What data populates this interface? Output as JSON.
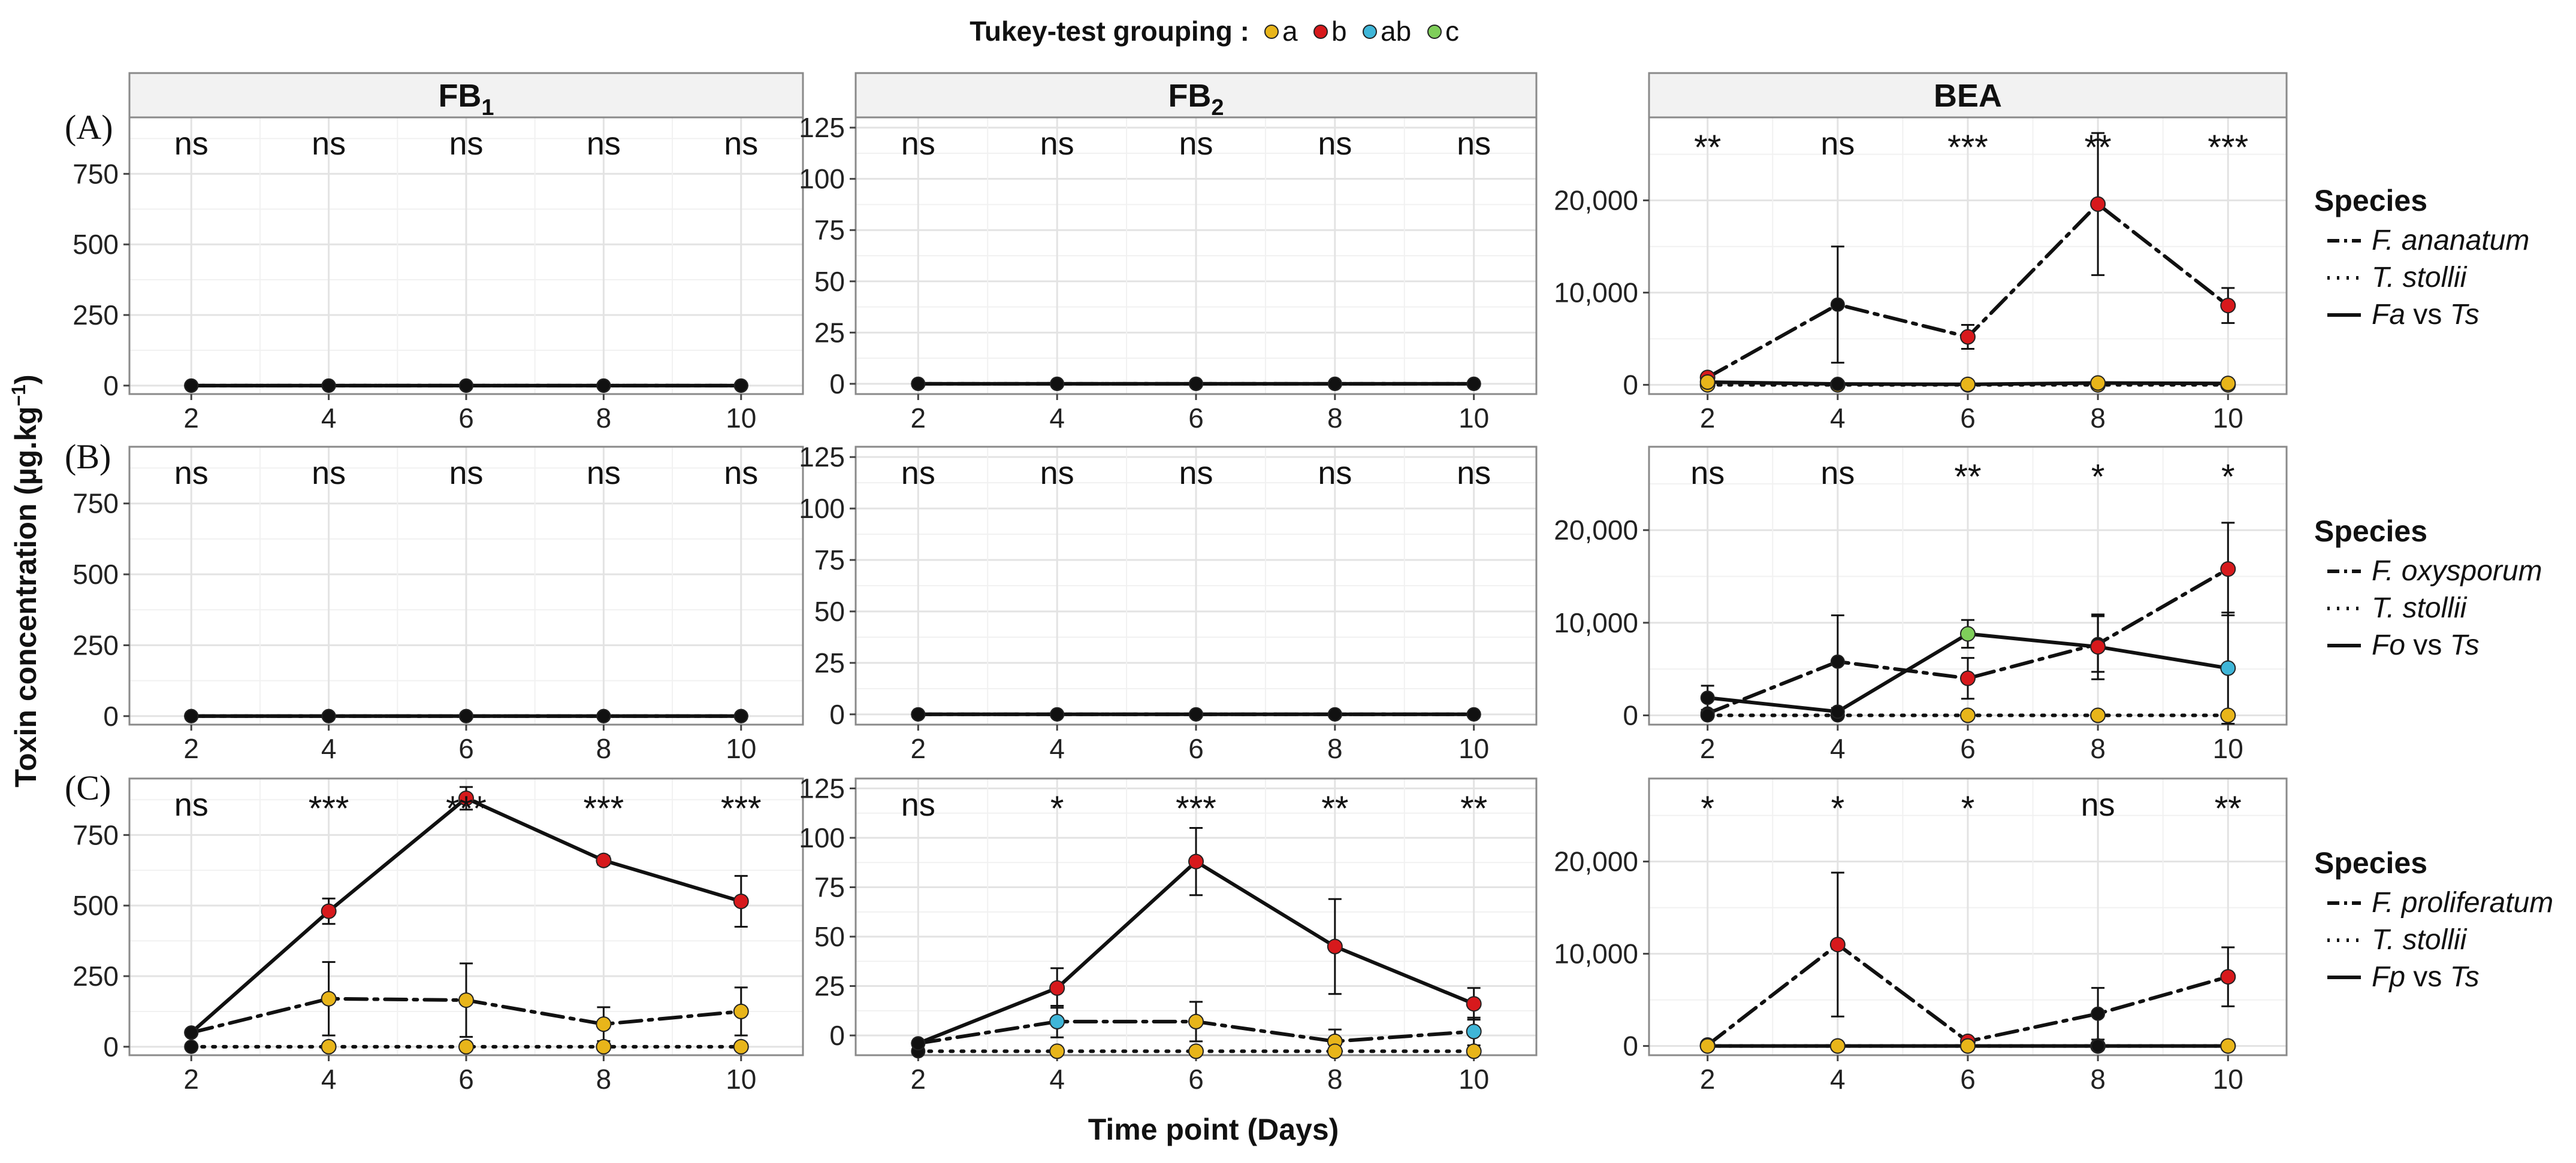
{
  "figure": {
    "ylabel_main": "Toxin concentration (µg.kg",
    "ylabel_sup": "−1",
    "ylabel_close": ")",
    "xlabel": "Time point (Days)",
    "tukey_title": "Tukey-test grouping :",
    "tukey_groups": [
      {
        "label": "a",
        "color": "#e8b51a"
      },
      {
        "label": "b",
        "color": "#d7191c"
      },
      {
        "label": "ab",
        "color": "#3fb6d8"
      },
      {
        "label": "c",
        "color": "#7fce5a"
      }
    ],
    "row_labels": [
      "(A)",
      "(B)",
      "(C)"
    ],
    "strip_titles": [
      {
        "main": "FB",
        "sub": "1"
      },
      {
        "main": "FB",
        "sub": "2"
      },
      {
        "main": "BEA",
        "sub": ""
      }
    ],
    "legends": [
      {
        "title": "Species",
        "entries": [
          {
            "italic": "F. ananatum",
            "rest": "",
            "linetype": "dotdash"
          },
          {
            "italic": "T. stollii",
            "rest": "",
            "linetype": "dotted"
          },
          {
            "italic": "Fa",
            "rest": " vs ",
            "italic2": "Ts",
            "linetype": "solid"
          }
        ]
      },
      {
        "title": "Species",
        "entries": [
          {
            "italic": "F. oxysporum",
            "rest": "",
            "linetype": "dotdash"
          },
          {
            "italic": "T. stollii",
            "rest": "",
            "linetype": "dotted"
          },
          {
            "italic": "Fo",
            "rest": " vs ",
            "italic2": "Ts",
            "linetype": "solid"
          }
        ]
      },
      {
        "title": "Species",
        "entries": [
          {
            "italic": "F. proliferatum",
            "rest": "",
            "linetype": "dotdash"
          },
          {
            "italic": "T. stollii",
            "rest": "",
            "linetype": "dotted"
          },
          {
            "italic": "Fp",
            "rest": " vs ",
            "italic2": "Ts",
            "linetype": "solid"
          }
        ]
      }
    ]
  },
  "chart_data": [
    {
      "id": "A-FB1",
      "type": "line",
      "row": 0,
      "col": 0,
      "ylim": [
        -30,
        950
      ],
      "yticks": [
        0,
        250,
        500,
        750
      ],
      "ytick_labels": [
        "0",
        "250",
        "500",
        "750"
      ],
      "x": [
        2,
        4,
        6,
        8,
        10
      ],
      "x_labels": [
        "2",
        "4",
        "6",
        "8",
        "10"
      ],
      "xlim": [
        1.1,
        10.9
      ],
      "signif": [
        "ns",
        "ns",
        "ns",
        "ns",
        "ns"
      ],
      "series": [
        {
          "name": "F. ananatum",
          "linetype": "dotdash",
          "values": [
            0,
            0,
            0,
            0,
            0
          ],
          "err": [
            0,
            0,
            0,
            0,
            0
          ],
          "groups": [
            "k",
            "k",
            "k",
            "k",
            "k"
          ]
        },
        {
          "name": "T. stollii",
          "linetype": "dotted",
          "values": [
            0,
            0,
            0,
            0,
            0
          ],
          "err": [
            0,
            0,
            0,
            0,
            0
          ],
          "groups": [
            "k",
            "k",
            "k",
            "k",
            "k"
          ]
        },
        {
          "name": "Fa vs Ts",
          "linetype": "solid",
          "values": [
            0,
            0,
            0,
            0,
            0
          ],
          "err": [
            0,
            0,
            0,
            0,
            0
          ],
          "groups": [
            "k",
            "k",
            "k",
            "k",
            "k"
          ]
        }
      ]
    },
    {
      "id": "A-FB2",
      "type": "line",
      "row": 0,
      "col": 1,
      "ylim": [
        -5,
        130
      ],
      "yticks": [
        0,
        25,
        50,
        75,
        100,
        125
      ],
      "ytick_labels": [
        "0",
        "25",
        "50",
        "75",
        "100",
        "125"
      ],
      "x": [
        2,
        4,
        6,
        8,
        10
      ],
      "x_labels": [
        "2",
        "4",
        "6",
        "8",
        "10"
      ],
      "xlim": [
        1.1,
        10.9
      ],
      "signif": [
        "ns",
        "ns",
        "ns",
        "ns",
        "ns"
      ],
      "series": [
        {
          "name": "F. ananatum",
          "linetype": "dotdash",
          "values": [
            0,
            0,
            0,
            0,
            0
          ],
          "err": [
            0,
            0,
            0,
            0,
            0
          ],
          "groups": [
            "k",
            "k",
            "k",
            "k",
            "k"
          ]
        },
        {
          "name": "T. stollii",
          "linetype": "dotted",
          "values": [
            0,
            0,
            0,
            0,
            0
          ],
          "err": [
            0,
            0,
            0,
            0,
            0
          ],
          "groups": [
            "k",
            "k",
            "k",
            "k",
            "k"
          ]
        },
        {
          "name": "Fa vs Ts",
          "linetype": "solid",
          "values": [
            0,
            0,
            0,
            0,
            0
          ],
          "err": [
            0,
            0,
            0,
            0,
            0
          ],
          "groups": [
            "k",
            "k",
            "k",
            "k",
            "k"
          ]
        }
      ]
    },
    {
      "id": "A-BEA",
      "type": "line",
      "row": 0,
      "col": 2,
      "ylim": [
        -1000,
        29000
      ],
      "yticks": [
        0,
        10000,
        20000
      ],
      "ytick_labels": [
        "0",
        "10,000",
        "20,000"
      ],
      "x": [
        2,
        4,
        6,
        8,
        10
      ],
      "x_labels": [
        "2",
        "4",
        "6",
        "8",
        "10"
      ],
      "xlim": [
        1.1,
        10.9
      ],
      "signif": [
        "**",
        "ns",
        "***",
        "**",
        "***"
      ],
      "series": [
        {
          "name": "F. ananatum",
          "linetype": "dotdash",
          "values": [
            800,
            8700,
            5200,
            19600,
            8600
          ],
          "err": [
            0,
            6300,
            1300,
            7700,
            1900
          ],
          "groups": [
            "b",
            "k",
            "b",
            "b",
            "b"
          ]
        },
        {
          "name": "T. stollii",
          "linetype": "dotted",
          "values": [
            0,
            0,
            0,
            0,
            0
          ],
          "err": [
            0,
            0,
            0,
            0,
            0
          ],
          "groups": [
            "a",
            "a",
            "a",
            "a",
            "a"
          ]
        },
        {
          "name": "Fa vs Ts",
          "linetype": "solid",
          "values": [
            300,
            100,
            50,
            200,
            150
          ],
          "err": [
            0,
            0,
            0,
            0,
            0
          ],
          "groups": [
            "a",
            "k",
            "a",
            "a",
            "a"
          ]
        }
      ]
    },
    {
      "id": "B-FB1",
      "type": "line",
      "row": 1,
      "col": 0,
      "ylim": [
        -30,
        950
      ],
      "yticks": [
        0,
        250,
        500,
        750
      ],
      "ytick_labels": [
        "0",
        "250",
        "500",
        "750"
      ],
      "x": [
        2,
        4,
        6,
        8,
        10
      ],
      "x_labels": [
        "2",
        "4",
        "6",
        "8",
        "10"
      ],
      "xlim": [
        1.1,
        10.9
      ],
      "signif": [
        "ns",
        "ns",
        "ns",
        "ns",
        "ns"
      ],
      "series": [
        {
          "name": "F. oxysporum",
          "linetype": "dotdash",
          "values": [
            0,
            0,
            0,
            0,
            0
          ],
          "err": [
            0,
            0,
            0,
            0,
            0
          ],
          "groups": [
            "k",
            "k",
            "k",
            "k",
            "k"
          ]
        },
        {
          "name": "T. stollii",
          "linetype": "dotted",
          "values": [
            0,
            0,
            0,
            0,
            0
          ],
          "err": [
            0,
            0,
            0,
            0,
            0
          ],
          "groups": [
            "k",
            "k",
            "k",
            "k",
            "k"
          ]
        },
        {
          "name": "Fo vs Ts",
          "linetype": "solid",
          "values": [
            0,
            0,
            0,
            0,
            0
          ],
          "err": [
            0,
            0,
            0,
            0,
            0
          ],
          "groups": [
            "k",
            "k",
            "k",
            "k",
            "k"
          ]
        }
      ]
    },
    {
      "id": "B-FB2",
      "type": "line",
      "row": 1,
      "col": 1,
      "ylim": [
        -5,
        130
      ],
      "yticks": [
        0,
        25,
        50,
        75,
        100,
        125
      ],
      "ytick_labels": [
        "0",
        "25",
        "50",
        "75",
        "100",
        "125"
      ],
      "x": [
        2,
        4,
        6,
        8,
        10
      ],
      "x_labels": [
        "2",
        "4",
        "6",
        "8",
        "10"
      ],
      "xlim": [
        1.1,
        10.9
      ],
      "signif": [
        "ns",
        "ns",
        "ns",
        "ns",
        "ns"
      ],
      "series": [
        {
          "name": "F. oxysporum",
          "linetype": "dotdash",
          "values": [
            0,
            0,
            0,
            0,
            0
          ],
          "err": [
            0,
            0,
            0,
            0,
            0
          ],
          "groups": [
            "k",
            "k",
            "k",
            "k",
            "k"
          ]
        },
        {
          "name": "T. stollii",
          "linetype": "dotted",
          "values": [
            0,
            0,
            0,
            0,
            0
          ],
          "err": [
            0,
            0,
            0,
            0,
            0
          ],
          "groups": [
            "k",
            "k",
            "k",
            "k",
            "k"
          ]
        },
        {
          "name": "Fo vs Ts",
          "linetype": "solid",
          "values": [
            0,
            0,
            0,
            0,
            0
          ],
          "err": [
            0,
            0,
            0,
            0,
            0
          ],
          "groups": [
            "k",
            "k",
            "k",
            "k",
            "k"
          ]
        }
      ]
    },
    {
      "id": "B-BEA",
      "type": "line",
      "row": 1,
      "col": 2,
      "ylim": [
        -1000,
        29000
      ],
      "yticks": [
        0,
        10000,
        20000
      ],
      "ytick_labels": [
        "0",
        "10,000",
        "20,000"
      ],
      "x": [
        2,
        4,
        6,
        8,
        10
      ],
      "x_labels": [
        "2",
        "4",
        "6",
        "8",
        "10"
      ],
      "xlim": [
        1.1,
        10.9
      ],
      "signif": [
        "ns",
        "ns",
        "**",
        "*",
        "*"
      ],
      "series": [
        {
          "name": "F. oxysporum",
          "linetype": "dotdash",
          "values": [
            200,
            5800,
            4000,
            7700,
            15800
          ],
          "err": [
            0,
            5000,
            2200,
            3000,
            5000
          ],
          "groups": [
            "k",
            "k",
            "b",
            "k",
            "b"
          ]
        },
        {
          "name": "T. stollii",
          "linetype": "dotted",
          "values": [
            0,
            0,
            0,
            0,
            0
          ],
          "err": [
            0,
            0,
            0,
            0,
            0
          ],
          "groups": [
            "k",
            "k",
            "a",
            "a",
            "a"
          ]
        },
        {
          "name": "Fo vs Ts",
          "linetype": "solid",
          "values": [
            1900,
            400,
            8800,
            7400,
            5100
          ],
          "err": [
            1300,
            0,
            1500,
            3500,
            6000
          ],
          "groups": [
            "k",
            "k",
            "c",
            "b",
            "ab"
          ]
        }
      ]
    },
    {
      "id": "C-FB1",
      "type": "line",
      "row": 2,
      "col": 0,
      "ylim": [
        -30,
        950
      ],
      "yticks": [
        0,
        250,
        500,
        750
      ],
      "ytick_labels": [
        "0",
        "250",
        "500",
        "750"
      ],
      "x": [
        2,
        4,
        6,
        8,
        10
      ],
      "x_labels": [
        "2",
        "4",
        "6",
        "8",
        "10"
      ],
      "xlim": [
        1.1,
        10.9
      ],
      "signif": [
        "ns",
        "***",
        "***",
        "***",
        "***"
      ],
      "series": [
        {
          "name": "F. proliferatum",
          "linetype": "dotdash",
          "values": [
            50,
            170,
            165,
            80,
            125
          ],
          "err": [
            0,
            130,
            130,
            60,
            85
          ],
          "groups": [
            "k",
            "a",
            "a",
            "a",
            "a"
          ]
        },
        {
          "name": "T. stollii",
          "linetype": "dotted",
          "values": [
            0,
            0,
            0,
            0,
            0
          ],
          "err": [
            0,
            0,
            0,
            0,
            0
          ],
          "groups": [
            "k",
            "a",
            "a",
            "a",
            "a"
          ]
        },
        {
          "name": "Fp vs Ts",
          "linetype": "solid",
          "values": [
            50,
            480,
            880,
            660,
            515
          ],
          "err": [
            0,
            45,
            40,
            15,
            90
          ],
          "groups": [
            "k",
            "b",
            "b",
            "b",
            "b"
          ]
        }
      ]
    },
    {
      "id": "C-FB2",
      "type": "line",
      "row": 2,
      "col": 1,
      "ylim": [
        -10,
        130
      ],
      "yticks": [
        0,
        25,
        50,
        75,
        100,
        125
      ],
      "ytick_labels": [
        "0",
        "25",
        "50",
        "75",
        "100",
        "125"
      ],
      "x": [
        2,
        4,
        6,
        8,
        10
      ],
      "x_labels": [
        "2",
        "4",
        "6",
        "8",
        "10"
      ],
      "xlim": [
        1.1,
        10.9
      ],
      "signif": [
        "ns",
        "*",
        "***",
        "**",
        "**"
      ],
      "series": [
        {
          "name": "F. proliferatum",
          "linetype": "dotdash",
          "values": [
            -4,
            7,
            7,
            -3,
            2
          ],
          "err": [
            0,
            8,
            10,
            6,
            7
          ],
          "groups": [
            "k",
            "ab",
            "a",
            "a",
            "ab"
          ]
        },
        {
          "name": "T. stollii",
          "linetype": "dotted",
          "values": [
            -8,
            -8,
            -8,
            -8,
            -8
          ],
          "err": [
            0,
            0,
            0,
            0,
            0
          ],
          "groups": [
            "k",
            "a",
            "a",
            "a",
            "a"
          ]
        },
        {
          "name": "Fp vs Ts",
          "linetype": "solid",
          "values": [
            -4,
            24,
            88,
            45,
            16
          ],
          "err": [
            0,
            10,
            17,
            24,
            8
          ],
          "groups": [
            "k",
            "b",
            "b",
            "b",
            "b"
          ]
        }
      ]
    },
    {
      "id": "C-BEA",
      "type": "line",
      "row": 2,
      "col": 2,
      "ylim": [
        -1000,
        29000
      ],
      "yticks": [
        0,
        10000,
        20000
      ],
      "ytick_labels": [
        "0",
        "10,000",
        "20,000"
      ],
      "x": [
        2,
        4,
        6,
        8,
        10
      ],
      "x_labels": [
        "2",
        "4",
        "6",
        "8",
        "10"
      ],
      "xlim": [
        1.1,
        10.9
      ],
      "signif": [
        "*",
        "*",
        "*",
        "ns",
        "**"
      ],
      "series": [
        {
          "name": "F. proliferatum",
          "linetype": "dotdash",
          "values": [
            100,
            11000,
            500,
            3500,
            7500
          ],
          "err": [
            0,
            7800,
            0,
            2800,
            3200
          ],
          "groups": [
            "a",
            "b",
            "b",
            "k",
            "b"
          ]
        },
        {
          "name": "T. stollii",
          "linetype": "dotted",
          "values": [
            0,
            0,
            0,
            0,
            0
          ],
          "err": [
            0,
            0,
            0,
            0,
            0
          ],
          "groups": [
            "a",
            "a",
            "a",
            "a",
            "a"
          ]
        },
        {
          "name": "Fp vs Ts",
          "linetype": "solid",
          "values": [
            0,
            0,
            0,
            0,
            0
          ],
          "err": [
            0,
            0,
            0,
            0,
            0
          ],
          "groups": [
            "a",
            "a",
            "a",
            "k",
            "a"
          ]
        }
      ]
    }
  ]
}
